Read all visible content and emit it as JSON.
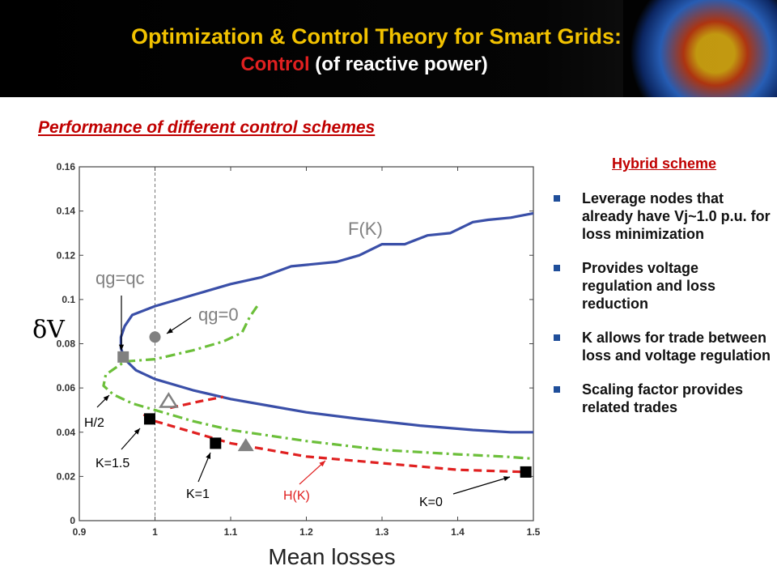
{
  "header": {
    "title_line1": "Optimization & Control Theory for Smart Grids:",
    "title_line2_accent": "Control",
    "title_line2_rest": " (of reactive power)"
  },
  "subtitle": "Performance of different control schemes",
  "sidebar": {
    "heading": "Hybrid scheme",
    "bullets": [
      "Leverage nodes that already have Vj~1.0 p.u. for loss minimization",
      "Provides voltage regulation and loss reduction",
      "K allows for trade between loss and voltage regulation",
      "Scaling factor provides related trades"
    ]
  },
  "chart_data": {
    "type": "line",
    "xlabel": "Mean losses",
    "ylabel": "δV",
    "xlim": [
      0.9,
      1.5
    ],
    "ylim": [
      0,
      0.16
    ],
    "xticks": [
      "0.9",
      "1",
      "1.1",
      "1.2",
      "1.3",
      "1.4",
      "1.5"
    ],
    "yticks": [
      "0",
      "0.02",
      "0.04",
      "0.06",
      "0.08",
      "0.1",
      "0.12",
      "0.14",
      "0.16"
    ],
    "grid": false,
    "reference_line_x": 1.0,
    "series": [
      {
        "name": "F(K)",
        "color": "#3a4fa8",
        "dash": "solid",
        "points": [
          [
            1.5,
            0.139
          ],
          [
            1.47,
            0.137
          ],
          [
            1.44,
            0.136
          ],
          [
            1.42,
            0.135
          ],
          [
            1.39,
            0.13
          ],
          [
            1.36,
            0.129
          ],
          [
            1.33,
            0.125
          ],
          [
            1.3,
            0.125
          ],
          [
            1.27,
            0.12
          ],
          [
            1.24,
            0.117
          ],
          [
            1.18,
            0.115
          ],
          [
            1.14,
            0.11
          ],
          [
            1.1,
            0.107
          ],
          [
            1.05,
            0.102
          ],
          [
            1.0,
            0.097
          ],
          [
            0.97,
            0.093
          ],
          [
            0.96,
            0.088
          ],
          [
            0.955,
            0.083
          ],
          [
            0.955,
            0.078
          ],
          [
            0.96,
            0.073
          ],
          [
            0.975,
            0.068
          ],
          [
            1.0,
            0.064
          ],
          [
            1.05,
            0.059
          ],
          [
            1.1,
            0.055
          ],
          [
            1.15,
            0.052
          ],
          [
            1.2,
            0.049
          ],
          [
            1.27,
            0.046
          ],
          [
            1.35,
            0.043
          ],
          [
            1.42,
            0.041
          ],
          [
            1.47,
            0.04
          ],
          [
            1.5,
            0.04
          ]
        ]
      },
      {
        "name": "H/2",
        "color": "#6cbf3a",
        "dash": "dashdot",
        "points": [
          [
            1.135,
            0.097
          ],
          [
            1.125,
            0.092
          ],
          [
            1.115,
            0.085
          ],
          [
            1.09,
            0.081
          ],
          [
            1.05,
            0.077
          ],
          [
            1.0,
            0.073
          ],
          [
            0.96,
            0.072
          ],
          [
            0.935,
            0.066
          ],
          [
            0.932,
            0.061
          ],
          [
            0.945,
            0.057
          ],
          [
            0.97,
            0.053
          ],
          [
            1.0,
            0.05
          ],
          [
            1.05,
            0.045
          ],
          [
            1.1,
            0.041
          ],
          [
            1.2,
            0.036
          ],
          [
            1.3,
            0.032
          ],
          [
            1.4,
            0.03
          ],
          [
            1.46,
            0.029
          ],
          [
            1.5,
            0.028
          ]
        ]
      },
      {
        "name": "H(K)",
        "color": "#e02020",
        "dash": "dashed",
        "points": [
          [
            0.985,
            0.048
          ],
          [
            1.0,
            0.045
          ],
          [
            1.05,
            0.04
          ],
          [
            1.1,
            0.035
          ],
          [
            1.15,
            0.032
          ],
          [
            1.2,
            0.029
          ],
          [
            1.3,
            0.026
          ],
          [
            1.4,
            0.023
          ],
          [
            1.49,
            0.022
          ]
        ],
        "branch": [
          [
            1.02,
            0.051
          ],
          [
            1.06,
            0.054
          ],
          [
            1.09,
            0.056
          ]
        ]
      }
    ],
    "markers": [
      {
        "label": "qg=qc",
        "shape": "square",
        "color": "#808080",
        "x": 0.958,
        "y": 0.074
      },
      {
        "label": "qg=0",
        "shape": "circle",
        "color": "#808080",
        "x": 1.0,
        "y": 0.083
      },
      {
        "label": "K=1.5",
        "shape": "square",
        "color": "#000000",
        "x": 0.993,
        "y": 0.046
      },
      {
        "label": "K=1",
        "shape": "square",
        "color": "#000000",
        "x": 1.08,
        "y": 0.035
      },
      {
        "label": "K=0",
        "shape": "square",
        "color": "#000000",
        "x": 1.49,
        "y": 0.022
      },
      {
        "label": "",
        "shape": "triangle-open",
        "color": "#808080",
        "x": 1.018,
        "y": 0.054
      },
      {
        "label": "",
        "shape": "triangle",
        "color": "#808080",
        "x": 1.12,
        "y": 0.034
      }
    ],
    "annotations": [
      {
        "text": "F(K)",
        "color": "#808080"
      },
      {
        "text": "qg=qc",
        "color": "#808080"
      },
      {
        "text": "qg=0",
        "color": "#808080"
      },
      {
        "text": "H/2",
        "color": "#000000"
      },
      {
        "text": "K=1.5",
        "color": "#000000"
      },
      {
        "text": "K=1",
        "color": "#000000"
      },
      {
        "text": "H(K)",
        "color": "#e02020"
      },
      {
        "text": "K=0",
        "color": "#000000"
      }
    ]
  }
}
